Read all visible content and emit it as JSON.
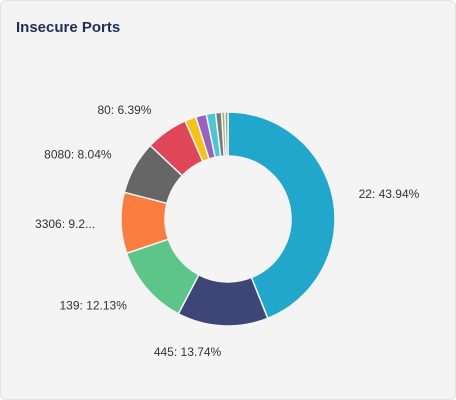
{
  "chart_data": {
    "type": "pie",
    "variant": "donut",
    "title": "Insecure Ports",
    "slices": [
      {
        "label": "22",
        "value": 43.94,
        "display": "22: 43.94%",
        "color": "#22a7cc"
      },
      {
        "label": "445",
        "value": 13.74,
        "display": "445: 13.74%",
        "color": "#3e4677"
      },
      {
        "label": "139",
        "value": 12.13,
        "display": "139: 12.13%",
        "color": "#5cc58a"
      },
      {
        "label": "3306",
        "value": 9.2,
        "display": "3306: 9.2...",
        "color": "#fb7d3d"
      },
      {
        "label": "8080",
        "value": 8.04,
        "display": "8080: 8.04%",
        "color": "#666666"
      },
      {
        "label": "80",
        "value": 6.39,
        "display": "80: 6.39%",
        "color": "#e14658"
      },
      {
        "label": "",
        "value": 1.7,
        "display": "",
        "color": "#f6c315"
      },
      {
        "label": "",
        "value": 1.6,
        "display": "",
        "color": "#9b5fc6"
      },
      {
        "label": "",
        "value": 1.4,
        "display": "",
        "color": "#46c8d8"
      },
      {
        "label": "",
        "value": 0.9,
        "display": "",
        "color": "#7a7a7a"
      },
      {
        "label": "",
        "value": 0.5,
        "display": "",
        "color": "#8fbf6e"
      },
      {
        "label": "",
        "value": 0.46,
        "display": "",
        "color": "#9a9a9a"
      }
    ]
  }
}
